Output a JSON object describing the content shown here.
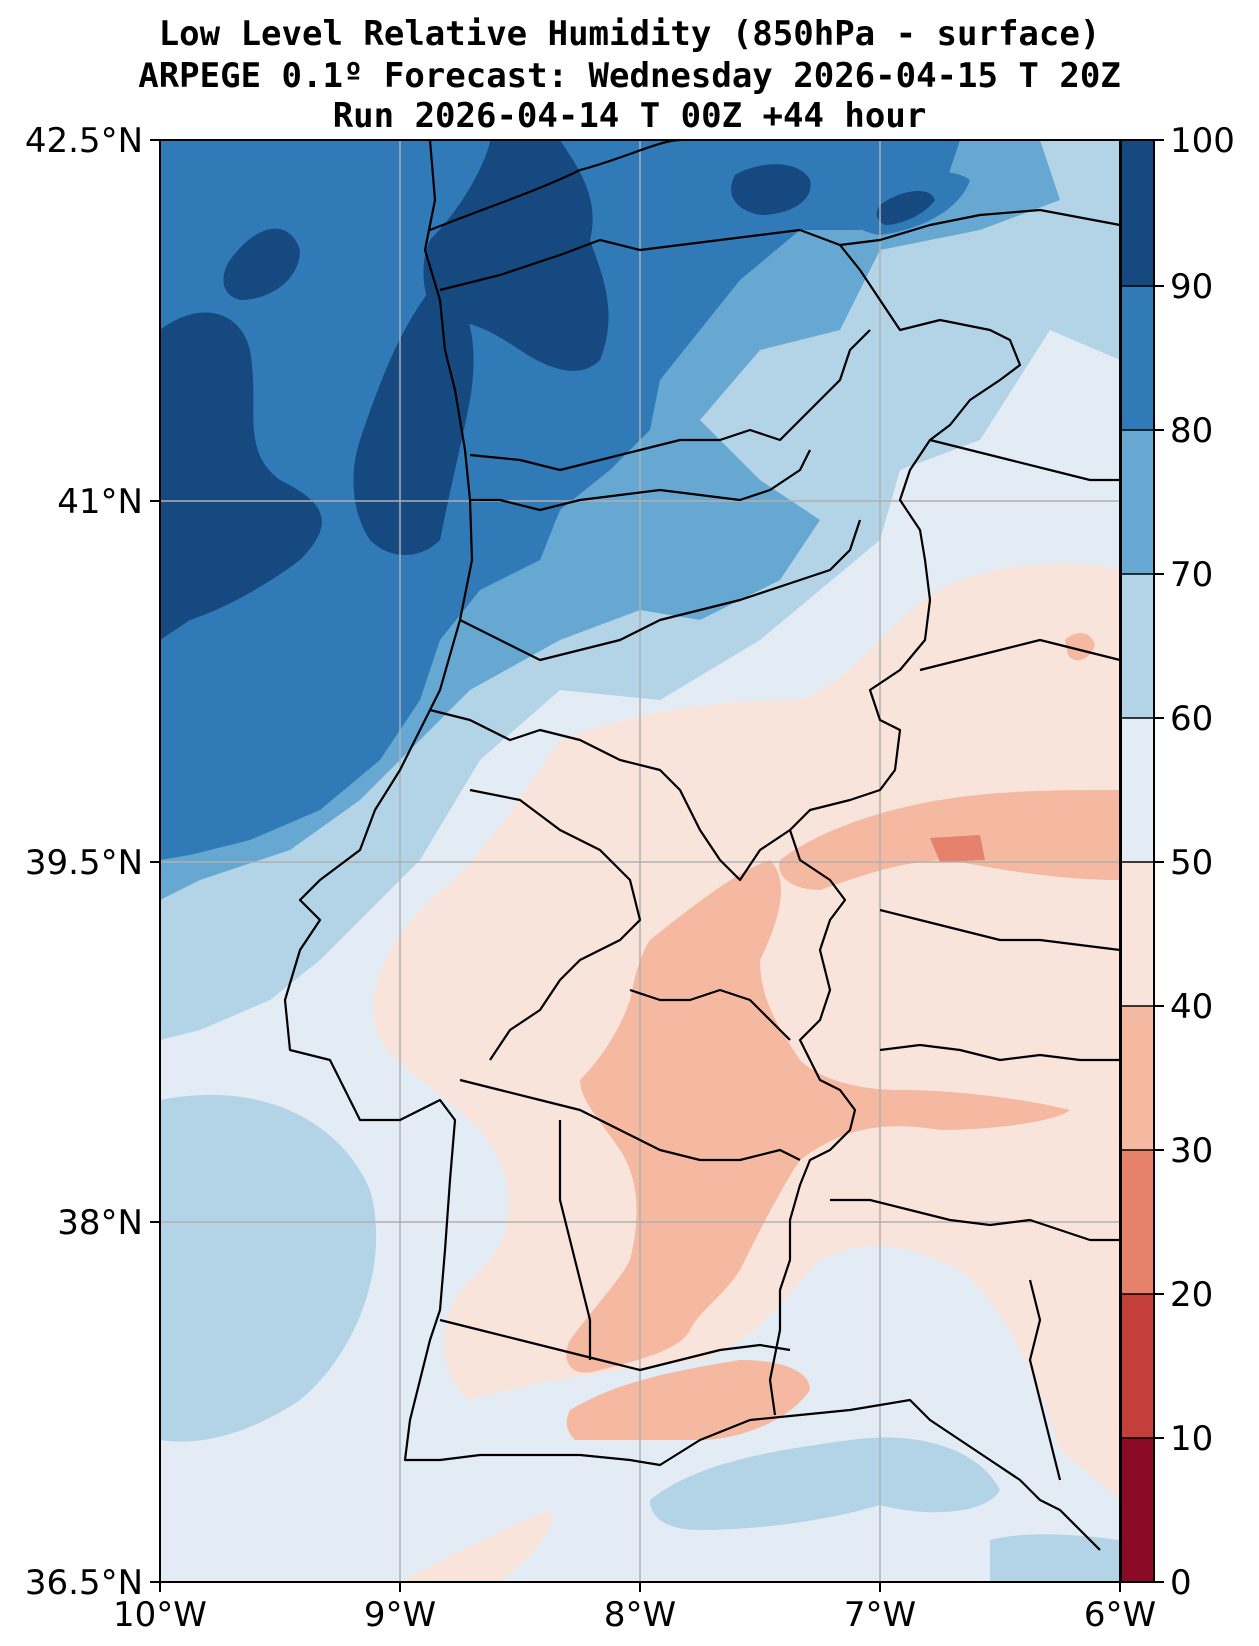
{
  "title": {
    "line1": "Low Level Relative Humidity (850hPa - surface)",
    "line2": "ARPEGE 0.1º Forecast: Wednesday 2026-04-15 T 20Z",
    "line3": "Run 2026-04-14 T 00Z +44 hour"
  },
  "map": {
    "region": "Portugal / western Iberia",
    "lon_range": [
      -10,
      -6
    ],
    "lat_range": [
      36.5,
      42.5
    ],
    "x_ticks": [
      "10°W",
      "9°W",
      "8°W",
      "7°W",
      "6°W"
    ],
    "y_ticks": [
      "42.5°N",
      "41°N",
      "39.5°N",
      "38°N",
      "36.5°N"
    ],
    "gridlines": true
  },
  "colorbar": {
    "ticks": [
      "0",
      "10",
      "20",
      "30",
      "40",
      "50",
      "60",
      "70",
      "80",
      "90",
      "100"
    ],
    "colors": [
      "#67001f",
      "#b2182b",
      "#d6604d",
      "#f4a582",
      "#fddbc7",
      "#e8eef5",
      "#d1e5f0",
      "#92c5de",
      "#4393c3",
      "#2166ac",
      "#053061"
    ]
  },
  "colors": {
    "very_dark_blue": "#15497f",
    "dark_blue": "#2f7ab7",
    "mid_blue": "#66a8d1",
    "light_blue": "#b3d4e6",
    "very_light_blue": "#e3ecf4",
    "light_salmon": "#f9e4db",
    "salmon": "#f4b9a0",
    "dark_salmon": "#e6816c"
  }
}
